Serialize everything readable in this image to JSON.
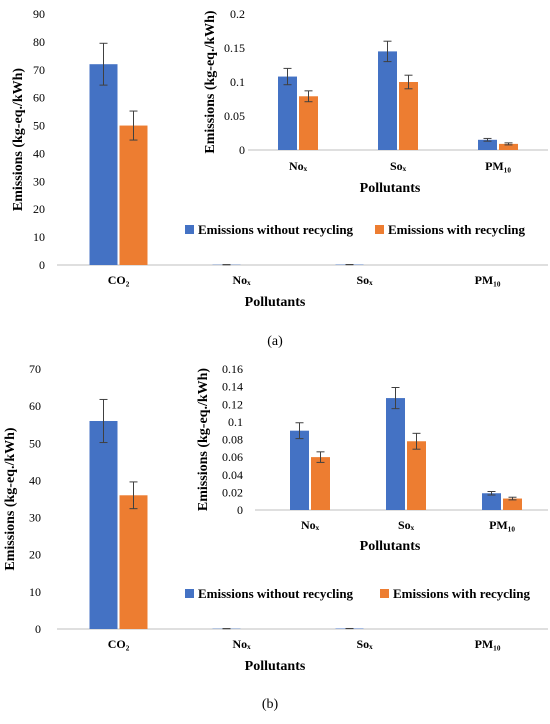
{
  "chart_data": [
    {
      "panel": "(a)",
      "type": "bar",
      "categories": [
        "CO₂",
        "Noₓ",
        "Soₓ",
        "PM₁₀"
      ],
      "series": [
        {
          "name": "Emissions without recycling",
          "color": "#4472c4",
          "values": [
            72,
            0.108,
            0.145,
            0.015
          ],
          "errors": [
            7.5,
            0.012,
            0.015,
            0.002
          ]
        },
        {
          "name": "Emissions with recycling",
          "color": "#ed7d31",
          "values": [
            50,
            0.079,
            0.1,
            0.009
          ],
          "errors": [
            5.2,
            0.008,
            0.01,
            0.0015
          ]
        }
      ],
      "xlabel": "Pollutants",
      "ylabel": "Emissions (kg-eq./kWh)",
      "ylim": [
        0,
        90
      ],
      "yticks": [
        "0",
        "10",
        "20",
        "30",
        "40",
        "50",
        "60",
        "70",
        "80",
        "90"
      ],
      "legend_position": "bottom-right",
      "inset": {
        "categories": [
          "Noₓ",
          "Soₓ",
          "PM₁₀"
        ],
        "series": [
          {
            "name": "Emissions without recycling",
            "values": [
              0.108,
              0.145,
              0.015
            ],
            "errors": [
              0.012,
              0.015,
              0.002
            ]
          },
          {
            "name": "Emissions with recycling",
            "values": [
              0.079,
              0.1,
              0.009
            ],
            "errors": [
              0.008,
              0.01,
              0.0015
            ]
          }
        ],
        "xlabel": "Pollutants",
        "ylabel": "Emissions (kg-eq./kWh)",
        "ylim": [
          0,
          0.2
        ],
        "yticks": [
          "0",
          "0.05",
          "0.1",
          "0.15",
          "0.2"
        ]
      }
    },
    {
      "panel": "(b)",
      "type": "bar",
      "categories": [
        "CO₂",
        "Noₓ",
        "Soₓ",
        "PM₁₀"
      ],
      "series": [
        {
          "name": "Emissions without recycling",
          "color": "#4472c4",
          "values": [
            56,
            0.09,
            0.127,
            0.019
          ],
          "errors": [
            5.8,
            0.009,
            0.012,
            0.002
          ]
        },
        {
          "name": "Emissions with recycling",
          "color": "#ed7d31",
          "values": [
            36,
            0.06,
            0.078,
            0.013
          ],
          "errors": [
            3.6,
            0.006,
            0.009,
            0.0015
          ]
        }
      ],
      "xlabel": "Pollutants",
      "ylabel": "Emissions (kg-eq./kWh)",
      "ylim": [
        0,
        70
      ],
      "yticks": [
        "0",
        "10",
        "20",
        "30",
        "40",
        "50",
        "60",
        "70"
      ],
      "legend_position": "bottom-right",
      "inset": {
        "categories": [
          "Noₓ",
          "Soₓ",
          "PM₁₀"
        ],
        "series": [
          {
            "name": "Emissions without recycling",
            "values": [
              0.09,
              0.127,
              0.019
            ],
            "errors": [
              0.009,
              0.012,
              0.002
            ]
          },
          {
            "name": "Emissions with recycling",
            "values": [
              0.06,
              0.078,
              0.013
            ],
            "errors": [
              0.006,
              0.009,
              0.0015
            ]
          }
        ],
        "xlabel": "Pollutants",
        "ylabel": "Emissions (kg-eq./kWh)",
        "ylim": [
          0,
          0.16
        ],
        "yticks": [
          "0",
          "0.02",
          "0.04",
          "0.06",
          "0.08",
          "0.1",
          "0.12",
          "0.14",
          "0.16"
        ]
      }
    }
  ]
}
